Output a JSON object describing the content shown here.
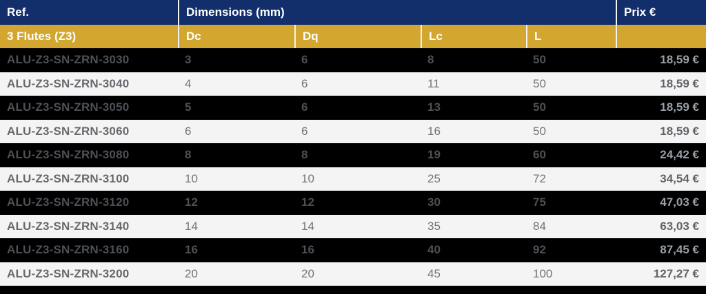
{
  "colors": {
    "navy": "#122e6b",
    "gold": "#d3a62f",
    "header-text": "#ffffff",
    "row-dark-bg": "#000000",
    "row-light-bg": "#f4f4f4",
    "dark-row-text": "#4d5156",
    "dark-row-price": "#9aa0a6",
    "light-row-text": "#707479",
    "light-row-ref": "#66696d",
    "light-row-price": "#5f6368"
  },
  "header": {
    "ref": "Ref.",
    "dimensions": "Dimensions (mm)",
    "price": "Prix €"
  },
  "subheader": {
    "group": "3 Flutes (Z3)",
    "dc": "Dc",
    "dq": "Dq",
    "lc": "Lc",
    "l": "L"
  },
  "rows": [
    {
      "ref": "ALU-Z3-SN-ZRN-3030",
      "dc": "3",
      "dq": "6",
      "lc": "8",
      "l": "50",
      "price": "18,59 €"
    },
    {
      "ref": "ALU-Z3-SN-ZRN-3040",
      "dc": "4",
      "dq": "6",
      "lc": "11",
      "l": "50",
      "price": "18,59 €"
    },
    {
      "ref": "ALU-Z3-SN-ZRN-3050",
      "dc": "5",
      "dq": "6",
      "lc": "13",
      "l": "50",
      "price": "18,59 €"
    },
    {
      "ref": "ALU-Z3-SN-ZRN-3060",
      "dc": "6",
      "dq": "6",
      "lc": "16",
      "l": "50",
      "price": "18,59 €"
    },
    {
      "ref": "ALU-Z3-SN-ZRN-3080",
      "dc": "8",
      "dq": "8",
      "lc": "19",
      "l": "60",
      "price": "24,42 €"
    },
    {
      "ref": "ALU-Z3-SN-ZRN-3100",
      "dc": "10",
      "dq": "10",
      "lc": "25",
      "l": "72",
      "price": "34,54 €"
    },
    {
      "ref": "ALU-Z3-SN-ZRN-3120",
      "dc": "12",
      "dq": "12",
      "lc": "30",
      "l": "75",
      "price": "47,03 €"
    },
    {
      "ref": "ALU-Z3-SN-ZRN-3140",
      "dc": "14",
      "dq": "14",
      "lc": "35",
      "l": "84",
      "price": "63,03 €"
    },
    {
      "ref": "ALU-Z3-SN-ZRN-3160",
      "dc": "16",
      "dq": "16",
      "lc": "40",
      "l": "92",
      "price": "87,45 €"
    },
    {
      "ref": "ALU-Z3-SN-ZRN-3200",
      "dc": "20",
      "dq": "20",
      "lc": "45",
      "l": "100",
      "price": "127,27 €"
    }
  ]
}
